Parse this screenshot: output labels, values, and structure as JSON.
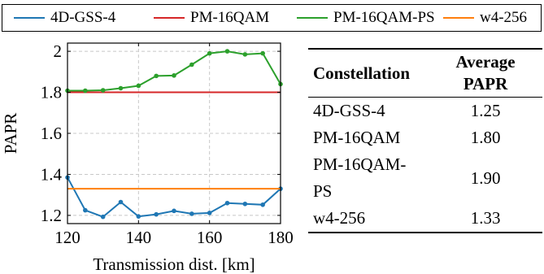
{
  "chart_data": {
    "type": "line",
    "xlabel": "Transmission dist. [km]",
    "ylabel": "PAPR",
    "xlim": [
      120,
      180
    ],
    "ylim": [
      1.16,
      2.04
    ],
    "xticks": [
      120,
      140,
      160,
      180
    ],
    "yticks": [
      1.2,
      1.4,
      1.6,
      1.8,
      2
    ],
    "ytick_labels": [
      "1.2",
      "1.4",
      "1.6",
      "1.8",
      "2"
    ],
    "grid": true,
    "legend_position": "top",
    "series": [
      {
        "name": "4D-GSS-4",
        "color": "#1f77b4",
        "markers": true,
        "x": [
          120,
          125,
          130,
          135,
          140,
          145,
          150,
          155,
          160,
          165,
          170,
          175,
          180
        ],
        "y": [
          1.385,
          1.225,
          1.193,
          1.265,
          1.195,
          1.205,
          1.222,
          1.208,
          1.212,
          1.26,
          1.256,
          1.252,
          1.33
        ]
      },
      {
        "name": "PM-16QAM",
        "color": "#d62728",
        "markers": false,
        "x": [
          120,
          180
        ],
        "y": [
          1.8,
          1.8
        ]
      },
      {
        "name": "PM-16QAM-PS",
        "color": "#2ca02c",
        "markers": true,
        "x": [
          120,
          125,
          130,
          135,
          140,
          145,
          150,
          155,
          160,
          165,
          170,
          175,
          180
        ],
        "y": [
          1.808,
          1.808,
          1.81,
          1.82,
          1.832,
          1.88,
          1.882,
          1.935,
          1.99,
          2.0,
          1.985,
          1.99,
          1.84
        ]
      },
      {
        "name": "w4-256",
        "color": "#ff7f0e",
        "markers": false,
        "x": [
          120,
          180
        ],
        "y": [
          1.33,
          1.33
        ]
      }
    ]
  },
  "table": {
    "headers": [
      "Constellation",
      "Average PAPR"
    ],
    "rows": [
      [
        "4D-GSS-4",
        "1.25"
      ],
      [
        "PM-16QAM",
        "1.80"
      ],
      [
        "PM-16QAM-PS",
        "1.90"
      ],
      [
        "w4-256",
        "1.33"
      ]
    ]
  }
}
